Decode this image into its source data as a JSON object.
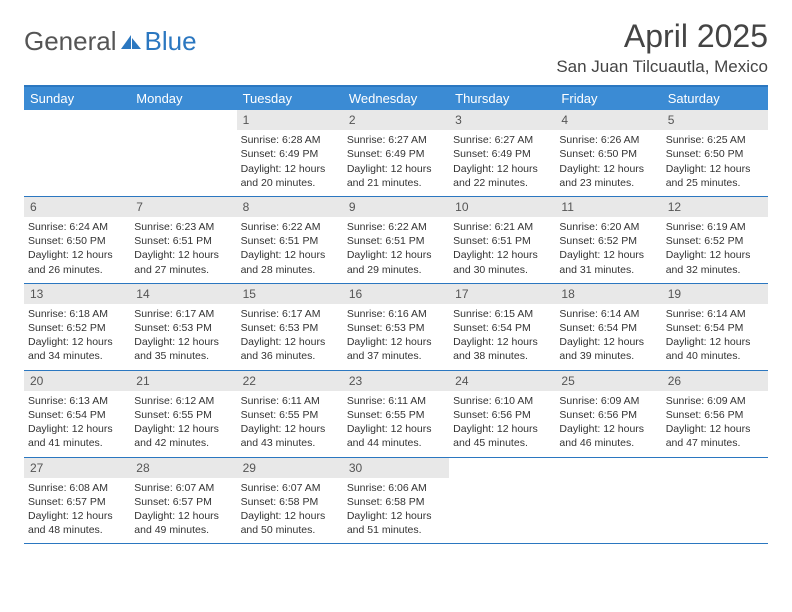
{
  "logo": {
    "general": "General",
    "blue": "Blue"
  },
  "title": "April 2025",
  "location": "San Juan Tilcuautla, Mexico",
  "colors": {
    "header_bg": "#3b8bd4",
    "border": "#2b77c0",
    "daynum_bg": "#e8e8e8",
    "text": "#333333"
  },
  "weekdays": [
    "Sunday",
    "Monday",
    "Tuesday",
    "Wednesday",
    "Thursday",
    "Friday",
    "Saturday"
  ],
  "weeks": [
    [
      null,
      null,
      {
        "n": "1",
        "sr": "6:28 AM",
        "ss": "6:49 PM",
        "dl": "12 hours and 20 minutes."
      },
      {
        "n": "2",
        "sr": "6:27 AM",
        "ss": "6:49 PM",
        "dl": "12 hours and 21 minutes."
      },
      {
        "n": "3",
        "sr": "6:27 AM",
        "ss": "6:49 PM",
        "dl": "12 hours and 22 minutes."
      },
      {
        "n": "4",
        "sr": "6:26 AM",
        "ss": "6:50 PM",
        "dl": "12 hours and 23 minutes."
      },
      {
        "n": "5",
        "sr": "6:25 AM",
        "ss": "6:50 PM",
        "dl": "12 hours and 25 minutes."
      }
    ],
    [
      {
        "n": "6",
        "sr": "6:24 AM",
        "ss": "6:50 PM",
        "dl": "12 hours and 26 minutes."
      },
      {
        "n": "7",
        "sr": "6:23 AM",
        "ss": "6:51 PM",
        "dl": "12 hours and 27 minutes."
      },
      {
        "n": "8",
        "sr": "6:22 AM",
        "ss": "6:51 PM",
        "dl": "12 hours and 28 minutes."
      },
      {
        "n": "9",
        "sr": "6:22 AM",
        "ss": "6:51 PM",
        "dl": "12 hours and 29 minutes."
      },
      {
        "n": "10",
        "sr": "6:21 AM",
        "ss": "6:51 PM",
        "dl": "12 hours and 30 minutes."
      },
      {
        "n": "11",
        "sr": "6:20 AM",
        "ss": "6:52 PM",
        "dl": "12 hours and 31 minutes."
      },
      {
        "n": "12",
        "sr": "6:19 AM",
        "ss": "6:52 PM",
        "dl": "12 hours and 32 minutes."
      }
    ],
    [
      {
        "n": "13",
        "sr": "6:18 AM",
        "ss": "6:52 PM",
        "dl": "12 hours and 34 minutes."
      },
      {
        "n": "14",
        "sr": "6:17 AM",
        "ss": "6:53 PM",
        "dl": "12 hours and 35 minutes."
      },
      {
        "n": "15",
        "sr": "6:17 AM",
        "ss": "6:53 PM",
        "dl": "12 hours and 36 minutes."
      },
      {
        "n": "16",
        "sr": "6:16 AM",
        "ss": "6:53 PM",
        "dl": "12 hours and 37 minutes."
      },
      {
        "n": "17",
        "sr": "6:15 AM",
        "ss": "6:54 PM",
        "dl": "12 hours and 38 minutes."
      },
      {
        "n": "18",
        "sr": "6:14 AM",
        "ss": "6:54 PM",
        "dl": "12 hours and 39 minutes."
      },
      {
        "n": "19",
        "sr": "6:14 AM",
        "ss": "6:54 PM",
        "dl": "12 hours and 40 minutes."
      }
    ],
    [
      {
        "n": "20",
        "sr": "6:13 AM",
        "ss": "6:54 PM",
        "dl": "12 hours and 41 minutes."
      },
      {
        "n": "21",
        "sr": "6:12 AM",
        "ss": "6:55 PM",
        "dl": "12 hours and 42 minutes."
      },
      {
        "n": "22",
        "sr": "6:11 AM",
        "ss": "6:55 PM",
        "dl": "12 hours and 43 minutes."
      },
      {
        "n": "23",
        "sr": "6:11 AM",
        "ss": "6:55 PM",
        "dl": "12 hours and 44 minutes."
      },
      {
        "n": "24",
        "sr": "6:10 AM",
        "ss": "6:56 PM",
        "dl": "12 hours and 45 minutes."
      },
      {
        "n": "25",
        "sr": "6:09 AM",
        "ss": "6:56 PM",
        "dl": "12 hours and 46 minutes."
      },
      {
        "n": "26",
        "sr": "6:09 AM",
        "ss": "6:56 PM",
        "dl": "12 hours and 47 minutes."
      }
    ],
    [
      {
        "n": "27",
        "sr": "6:08 AM",
        "ss": "6:57 PM",
        "dl": "12 hours and 48 minutes."
      },
      {
        "n": "28",
        "sr": "6:07 AM",
        "ss": "6:57 PM",
        "dl": "12 hours and 49 minutes."
      },
      {
        "n": "29",
        "sr": "6:07 AM",
        "ss": "6:58 PM",
        "dl": "12 hours and 50 minutes."
      },
      {
        "n": "30",
        "sr": "6:06 AM",
        "ss": "6:58 PM",
        "dl": "12 hours and 51 minutes."
      },
      null,
      null,
      null
    ]
  ],
  "labels": {
    "sunrise": "Sunrise: ",
    "sunset": "Sunset: ",
    "daylight": "Daylight: "
  }
}
